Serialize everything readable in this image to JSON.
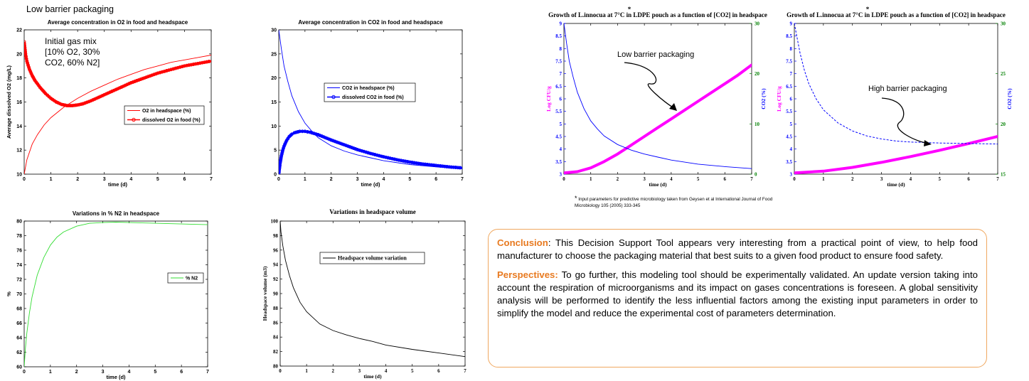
{
  "header": "Low barrier packaging",
  "chart_data": [
    {
      "id": "c1",
      "type": "line",
      "title": "Average concentration in O2 in food and headspace",
      "xlabel": "time (d)",
      "ylabel": "Average dissolved O2 (mg/L)",
      "xlim": [
        0,
        7
      ],
      "ylim": [
        10,
        22
      ],
      "xticks": [
        0,
        1,
        2,
        3,
        4,
        5,
        6,
        7
      ],
      "yticks": [
        10,
        12,
        14,
        16,
        18,
        20,
        22
      ],
      "annotation": [
        "Initial gas mix",
        "[10% O2, 30%",
        "CO2, 60% N2]"
      ],
      "legend": [
        "O2 in headspace (%)",
        "dissolved O2 in food (%)"
      ],
      "series": [
        {
          "name": "O2 in headspace (%)",
          "color": "#ff0000",
          "style": "line",
          "x": [
            0,
            0.1,
            0.3,
            0.5,
            0.75,
            1,
            1.5,
            2,
            2.5,
            3,
            3.5,
            4,
            4.5,
            5,
            5.5,
            6,
            6.5,
            7
          ],
          "y": [
            10,
            11.2,
            12.5,
            13.3,
            14.1,
            14.7,
            15.6,
            16.3,
            16.9,
            17.4,
            17.9,
            18.3,
            18.7,
            19.0,
            19.3,
            19.5,
            19.7,
            19.9
          ]
        },
        {
          "name": "dissolved O2 in food (%)",
          "color": "#ff0000",
          "style": "markers",
          "x": [
            0,
            0.05,
            0.1,
            0.2,
            0.3,
            0.4,
            0.5,
            0.6,
            0.8,
            1,
            1.2,
            1.4,
            1.6,
            1.8,
            2,
            2.2,
            2.5,
            3,
            3.5,
            4,
            4.5,
            5,
            5.5,
            6,
            6.5,
            7
          ],
          "y": [
            21,
            20,
            19.4,
            18.7,
            18.2,
            17.8,
            17.5,
            17.2,
            16.7,
            16.3,
            16.0,
            15.8,
            15.7,
            15.7,
            15.75,
            15.85,
            16.1,
            16.6,
            17.1,
            17.6,
            18.0,
            18.4,
            18.7,
            19.0,
            19.2,
            19.4
          ]
        }
      ]
    },
    {
      "id": "c2",
      "type": "line",
      "title": "Average concentration in CO2 in food and headspace",
      "xlabel": "time (d)",
      "ylabel": "",
      "xlim": [
        0,
        7
      ],
      "ylim": [
        0,
        30
      ],
      "xticks": [
        0,
        1,
        2,
        3,
        4,
        5,
        6,
        7
      ],
      "yticks": [
        0,
        5,
        10,
        15,
        20,
        25,
        30
      ],
      "legend": [
        "CO2 in headspace (%)",
        "dissolved CO2 in food (%)"
      ],
      "series": [
        {
          "name": "CO2 in headspace (%)",
          "color": "#0000ff",
          "style": "line",
          "x": [
            0,
            0.1,
            0.2,
            0.35,
            0.5,
            0.75,
            1,
            1.25,
            1.5,
            2,
            2.5,
            3,
            3.5,
            4,
            5,
            6,
            7
          ],
          "y": [
            30,
            26,
            22.5,
            19.2,
            16.3,
            13.0,
            10.6,
            9.0,
            7.6,
            5.9,
            4.8,
            4.0,
            3.4,
            2.8,
            2.0,
            1.5,
            1.1
          ]
        },
        {
          "name": "dissolved CO2 in food (%)",
          "color": "#0000ff",
          "style": "markers",
          "x": [
            0,
            0.05,
            0.1,
            0.15,
            0.2,
            0.3,
            0.4,
            0.5,
            0.6,
            0.8,
            1,
            1.2,
            1.5,
            2,
            2.5,
            3,
            3.5,
            4,
            4.5,
            5,
            5.5,
            6,
            6.5,
            7
          ],
          "y": [
            0,
            2.2,
            3.8,
            4.9,
            5.8,
            7.0,
            7.8,
            8.3,
            8.6,
            8.9,
            8.9,
            8.7,
            8.2,
            7.1,
            6.1,
            5.1,
            4.3,
            3.6,
            3.0,
            2.5,
            2.1,
            1.8,
            1.5,
            1.3
          ]
        }
      ]
    },
    {
      "id": "c3",
      "type": "line",
      "title": "Variations in % N2 in headspace",
      "xlabel": "time (d)",
      "ylabel": "%",
      "xlim": [
        0,
        7
      ],
      "ylim": [
        60,
        80
      ],
      "xticks": [
        0,
        1,
        2,
        3,
        4,
        5,
        6,
        7
      ],
      "yticks": [
        60,
        62,
        64,
        66,
        68,
        70,
        72,
        74,
        76,
        78,
        80
      ],
      "legend": [
        "% N2"
      ],
      "series": [
        {
          "name": "% N2",
          "color": "#33dd33",
          "style": "line",
          "x": [
            0,
            0.05,
            0.1,
            0.2,
            0.3,
            0.5,
            0.75,
            1,
            1.25,
            1.5,
            2,
            2.5,
            3,
            3.5,
            4,
            5,
            6,
            7
          ],
          "y": [
            60,
            62.6,
            64.6,
            67.4,
            69.6,
            72.6,
            75.0,
            76.7,
            77.8,
            78.5,
            79.3,
            79.7,
            79.8,
            79.85,
            79.8,
            79.7,
            79.6,
            79.5
          ]
        }
      ]
    },
    {
      "id": "c4",
      "type": "line",
      "title": "Variations in headspace volume",
      "xlabel": "time (d)",
      "ylabel": "Headspace volume (m3)",
      "xlim": [
        0,
        7
      ],
      "ylim": [
        80,
        100
      ],
      "xticks": [
        0,
        1,
        2,
        3,
        4,
        5,
        6,
        7
      ],
      "yticks": [
        80,
        82,
        84,
        86,
        88,
        90,
        92,
        94,
        96,
        98,
        100
      ],
      "legend": [
        "Headspace volume variation"
      ],
      "series": [
        {
          "name": "Headspace volume variation",
          "color": "#000000",
          "style": "line",
          "x": [
            0,
            0.03,
            0.1,
            0.2,
            0.35,
            0.5,
            0.75,
            1,
            1.5,
            2,
            2.5,
            3,
            3.5,
            4,
            5,
            6,
            7
          ],
          "y": [
            100,
            98.5,
            96.6,
            94.6,
            92.5,
            90.8,
            88.8,
            87.5,
            85.8,
            84.9,
            84.3,
            83.8,
            83.4,
            82.9,
            82.3,
            81.8,
            81.3
          ]
        }
      ]
    },
    {
      "id": "c5",
      "type": "line",
      "title": "Growth of L.innocua at 7°C in LDPE pouch as a function of [CO2] in headspace",
      "title_mark": "*",
      "xlabel": "time (d)",
      "ylabel": "Log CFU/g",
      "y2label": "CO2 (%)",
      "xlim": [
        0,
        7
      ],
      "ylim": [
        3,
        9
      ],
      "y2lim": [
        0,
        30
      ],
      "xticks": [
        0,
        1,
        2,
        3,
        4,
        5,
        6,
        7
      ],
      "yticks": [
        3,
        3.5,
        4,
        4.5,
        5,
        5.5,
        6,
        6.5,
        7,
        7.5,
        8,
        8.5,
        9
      ],
      "y2ticks": [
        0,
        10,
        20,
        30
      ],
      "annotation": "Low barrier packaging",
      "series": [
        {
          "name": "Log CFU/g",
          "color": "#ff00ff",
          "style": "thick",
          "axis": "left",
          "x": [
            0,
            0.5,
            1,
            1.5,
            2,
            2.5,
            3,
            3.5,
            4,
            4.5,
            5,
            5.5,
            6,
            6.5,
            7
          ],
          "y": [
            3.05,
            3.1,
            3.25,
            3.5,
            3.8,
            4.15,
            4.5,
            4.85,
            5.2,
            5.55,
            5.9,
            6.25,
            6.6,
            6.95,
            7.35
          ]
        },
        {
          "name": "CO2 (%)",
          "color": "#0000ff",
          "style": "line",
          "axis": "right",
          "x": [
            0,
            0.1,
            0.2,
            0.35,
            0.5,
            0.75,
            1,
            1.25,
            1.5,
            2,
            2.5,
            3,
            3.5,
            4,
            5,
            6,
            7
          ],
          "y": [
            30,
            26,
            22.5,
            19.2,
            16.3,
            13.0,
            10.6,
            9.0,
            7.6,
            5.9,
            4.8,
            4.0,
            3.4,
            2.8,
            2.0,
            1.5,
            1.1
          ]
        }
      ]
    },
    {
      "id": "c6",
      "type": "line",
      "title": "Growth of L.innocua at 7°C in LDPE pouch as a function of [CO2] in headspace",
      "title_mark": "*",
      "xlabel": "time (d)",
      "ylabel": "Log CFU/g",
      "y2label": "CO2 (%)",
      "xlim": [
        0,
        7
      ],
      "ylim": [
        3,
        9
      ],
      "y2lim": [
        15,
        30
      ],
      "xticks": [
        0,
        1,
        2,
        3,
        4,
        5,
        6,
        7
      ],
      "yticks": [
        3,
        3.5,
        4,
        4.5,
        5,
        5.5,
        6,
        6.5,
        7,
        7.5,
        8,
        8.5,
        9
      ],
      "y2ticks": [
        15,
        20,
        25,
        30
      ],
      "annotation": "High barrier packaging",
      "series": [
        {
          "name": "Log CFU/g",
          "color": "#ff00ff",
          "style": "thick",
          "axis": "left",
          "x": [
            0,
            1,
            2,
            3,
            4,
            5,
            6,
            7
          ],
          "y": [
            3.05,
            3.12,
            3.27,
            3.47,
            3.7,
            3.95,
            4.22,
            4.5
          ]
        },
        {
          "name": "CO2 (%)",
          "color": "#0000ff",
          "style": "dashed",
          "axis": "right",
          "x": [
            0,
            0.1,
            0.2,
            0.35,
            0.5,
            0.75,
            1,
            1.5,
            2,
            2.5,
            3,
            3.5,
            4,
            4.5,
            5,
            6,
            7
          ],
          "y": [
            30,
            28.5,
            27.0,
            25.3,
            24.0,
            22.5,
            21.4,
            20.1,
            19.3,
            18.8,
            18.5,
            18.3,
            18.2,
            18.15,
            18.1,
            18.05,
            18.0
          ]
        }
      ]
    }
  ],
  "footnote": {
    "mark": "*",
    "text": "Input parameters for predictive microbiology taken from Geysen et al International Journal of Food Microbiology 105 (2005) 333-345"
  },
  "conclusion": {
    "label": "Conclusion",
    "text": ": This Decision Support Tool appears very interesting from a practical point of view, to help food manufacturer to choose the packaging material that best suits to a given food product to ensure food safety."
  },
  "perspectives": {
    "label": "Perspectives:",
    "text": " To go further, this modeling tool should be experimentally validated. An update version taking into account the respiration of microorganisms and its impact on gases concentrations is foreseen. A global sensitivity analysis will be performed to identify the less influential factors among the existing input parameters in order to simplify the model and reduce the experimental cost of parameters determination."
  },
  "colors": {
    "accent": "#e87a20",
    "axis_green": "#008000",
    "axis_blue": "#0000ff",
    "magenta": "#ff00ff"
  }
}
